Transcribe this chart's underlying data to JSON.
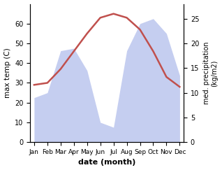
{
  "months": [
    "Jan",
    "Feb",
    "Mar",
    "Apr",
    "May",
    "Jun",
    "Jul",
    "Aug",
    "Sep",
    "Oct",
    "Nov",
    "Dec"
  ],
  "temperature": [
    29,
    30,
    37,
    46,
    55,
    63,
    65,
    63,
    57,
    46,
    33,
    28
  ],
  "precipitation": [
    9,
    10,
    18.5,
    19,
    14.5,
    4,
    3,
    18.5,
    24,
    25,
    22,
    13.5
  ],
  "temp_color": "#c0504d",
  "precip_fill_color": "#c5cef0",
  "temp_ylim": [
    0,
    70
  ],
  "precip_ylim": [
    0,
    28
  ],
  "temp_yticks": [
    0,
    10,
    20,
    30,
    40,
    50,
    60
  ],
  "precip_yticks": [
    0,
    5,
    10,
    15,
    20,
    25
  ],
  "xlabel": "date (month)",
  "ylabel_left": "max temp (C)",
  "ylabel_right": "med. precipitation\n(kg/m2)",
  "bg_color": "#ffffff",
  "fig_width": 3.18,
  "fig_height": 2.43,
  "dpi": 100
}
